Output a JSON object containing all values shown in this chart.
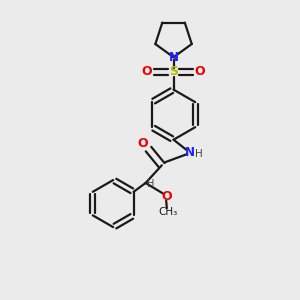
{
  "bg_color": "#ebebeb",
  "bond_color": "#1a1a1a",
  "N_color": "#2020ff",
  "O_color": "#ee0000",
  "S_color": "#b8b800",
  "H_color": "#444444",
  "line_width": 1.6,
  "fig_w": 3.0,
  "fig_h": 3.0,
  "dpi": 100,
  "xlim": [
    0,
    10
  ],
  "ylim": [
    0,
    10
  ]
}
